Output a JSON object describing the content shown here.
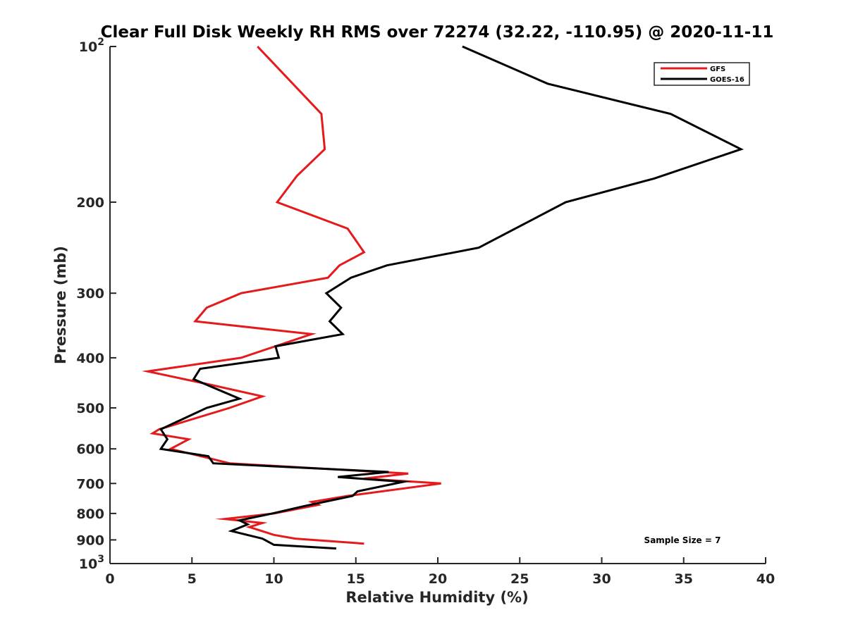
{
  "chart_data": {
    "type": "line",
    "title": "Clear Full Disk Weekly RH RMS over 72274 (32.22, -110.95) @ 2020-11-11",
    "xlabel": "Relative Humidity (%)",
    "ylabel": "Pressure (mb)",
    "xlim": [
      0,
      40
    ],
    "ylim": [
      100,
      1000
    ],
    "y_scale": "log",
    "y_reversed": true,
    "x_ticks": [
      0,
      5,
      10,
      15,
      20,
      25,
      30,
      35,
      40
    ],
    "x_tick_labels": [
      "0",
      "5",
      "10",
      "15",
      "20",
      "25",
      "30",
      "35",
      "40"
    ],
    "y_ticks": [
      100,
      200,
      300,
      400,
      500,
      600,
      700,
      800,
      900,
      1000
    ],
    "y_tick_labels": [
      {
        "base": "10",
        "exp": "2"
      },
      {
        "base": "200",
        "exp": ""
      },
      {
        "base": "300",
        "exp": ""
      },
      {
        "base": "400",
        "exp": ""
      },
      {
        "base": "500",
        "exp": ""
      },
      {
        "base": "600",
        "exp": ""
      },
      {
        "base": "700",
        "exp": ""
      },
      {
        "base": "800",
        "exp": ""
      },
      {
        "base": "900",
        "exp": ""
      },
      {
        "base": "10",
        "exp": "3"
      }
    ],
    "grid": false,
    "legend_position": "top-right",
    "annotation": "Sample Size = 7",
    "series": [
      {
        "name": "GFS",
        "color": "#e41a1c",
        "points": [
          {
            "x": 9.0,
            "y": 100
          },
          {
            "x": 12.9,
            "y": 135
          },
          {
            "x": 13.1,
            "y": 158
          },
          {
            "x": 11.4,
            "y": 178
          },
          {
            "x": 10.2,
            "y": 200
          },
          {
            "x": 14.5,
            "y": 225
          },
          {
            "x": 15.5,
            "y": 250
          },
          {
            "x": 14.0,
            "y": 265
          },
          {
            "x": 13.3,
            "y": 280
          },
          {
            "x": 8.0,
            "y": 300
          },
          {
            "x": 5.9,
            "y": 320
          },
          {
            "x": 5.2,
            "y": 340
          },
          {
            "x": 12.3,
            "y": 360
          },
          {
            "x": 8.0,
            "y": 400
          },
          {
            "x": 2.3,
            "y": 425
          },
          {
            "x": 6.0,
            "y": 450
          },
          {
            "x": 9.3,
            "y": 475
          },
          {
            "x": 7.3,
            "y": 500
          },
          {
            "x": 3.0,
            "y": 550
          },
          {
            "x": 2.6,
            "y": 560
          },
          {
            "x": 4.8,
            "y": 575
          },
          {
            "x": 3.7,
            "y": 600
          },
          {
            "x": 6.0,
            "y": 625
          },
          {
            "x": 7.3,
            "y": 640
          },
          {
            "x": 18.2,
            "y": 670
          },
          {
            "x": 15.5,
            "y": 685
          },
          {
            "x": 20.2,
            "y": 700
          },
          {
            "x": 14.5,
            "y": 740
          },
          {
            "x": 12.3,
            "y": 760
          },
          {
            "x": 12.7,
            "y": 770
          },
          {
            "x": 10.0,
            "y": 800
          },
          {
            "x": 7.0,
            "y": 820
          },
          {
            "x": 9.3,
            "y": 835
          },
          {
            "x": 8.5,
            "y": 850
          },
          {
            "x": 10.0,
            "y": 880
          },
          {
            "x": 11.3,
            "y": 895
          },
          {
            "x": 15.5,
            "y": 915
          }
        ]
      },
      {
        "name": "GOES-16",
        "color": "#000000",
        "points": [
          {
            "x": 21.5,
            "y": 100
          },
          {
            "x": 26.7,
            "y": 118
          },
          {
            "x": 34.2,
            "y": 135
          },
          {
            "x": 38.5,
            "y": 158
          },
          {
            "x": 33.2,
            "y": 180
          },
          {
            "x": 27.8,
            "y": 200
          },
          {
            "x": 22.5,
            "y": 245
          },
          {
            "x": 16.9,
            "y": 265
          },
          {
            "x": 14.7,
            "y": 280
          },
          {
            "x": 13.2,
            "y": 300
          },
          {
            "x": 14.1,
            "y": 320
          },
          {
            "x": 13.4,
            "y": 340
          },
          {
            "x": 14.2,
            "y": 360
          },
          {
            "x": 10.1,
            "y": 380
          },
          {
            "x": 10.3,
            "y": 400
          },
          {
            "x": 5.5,
            "y": 420
          },
          {
            "x": 5.1,
            "y": 440
          },
          {
            "x": 7.9,
            "y": 480
          },
          {
            "x": 5.9,
            "y": 500
          },
          {
            "x": 3.1,
            "y": 550
          },
          {
            "x": 3.5,
            "y": 575
          },
          {
            "x": 3.1,
            "y": 600
          },
          {
            "x": 6.0,
            "y": 620
          },
          {
            "x": 6.3,
            "y": 640
          },
          {
            "x": 17.0,
            "y": 665
          },
          {
            "x": 13.9,
            "y": 680
          },
          {
            "x": 17.9,
            "y": 695
          },
          {
            "x": 15.1,
            "y": 725
          },
          {
            "x": 14.8,
            "y": 740
          },
          {
            "x": 11.8,
            "y": 775
          },
          {
            "x": 9.9,
            "y": 800
          },
          {
            "x": 7.9,
            "y": 825
          },
          {
            "x": 8.4,
            "y": 840
          },
          {
            "x": 7.4,
            "y": 865
          },
          {
            "x": 9.3,
            "y": 895
          },
          {
            "x": 10.0,
            "y": 920
          },
          {
            "x": 13.8,
            "y": 935
          }
        ]
      }
    ]
  }
}
